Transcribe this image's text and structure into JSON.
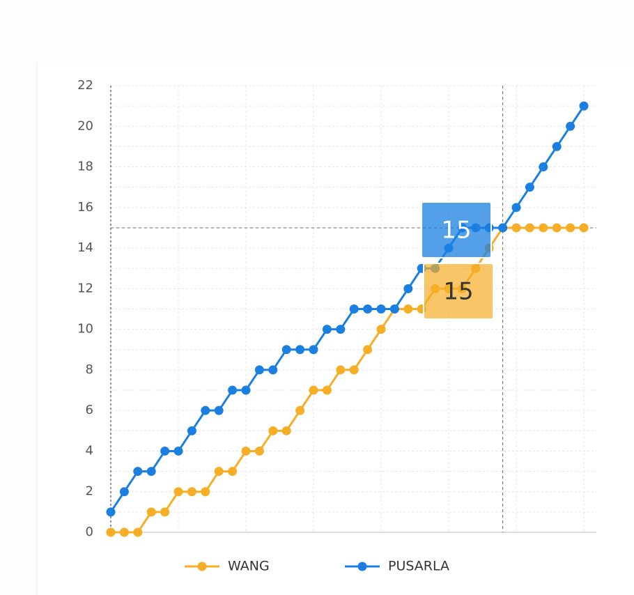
{
  "chart_data": {
    "type": "line",
    "categories": [
      null,
      null,
      null,
      null,
      null,
      null,
      null,
      null,
      null,
      null,
      null,
      null,
      null,
      null,
      null,
      null,
      null,
      null,
      null,
      null,
      null,
      null,
      null,
      null,
      null,
      null,
      null,
      null,
      null,
      null,
      null,
      null,
      null,
      null,
      null,
      null
    ],
    "series": [
      {
        "name": "WANG",
        "color": "#f5ae25",
        "values": [
          0,
          0,
          0,
          1,
          1,
          2,
          2,
          2,
          3,
          3,
          4,
          4,
          5,
          5,
          6,
          7,
          7,
          8,
          8,
          9,
          10,
          11,
          11,
          11,
          12,
          12,
          12,
          13,
          14,
          15,
          15,
          15,
          15,
          15,
          15,
          15
        ]
      },
      {
        "name": "PUSARLA",
        "color": "#1a7fe0",
        "values": [
          1,
          2,
          3,
          3,
          4,
          4,
          5,
          6,
          6,
          7,
          7,
          8,
          8,
          9,
          9,
          9,
          10,
          10,
          11,
          11,
          11,
          11,
          12,
          13,
          13,
          14,
          15,
          15,
          15,
          15,
          16,
          17,
          18,
          19,
          20,
          21
        ]
      }
    ],
    "ylim": [
      0,
      22
    ],
    "yticks": [
      0,
      2,
      4,
      6,
      8,
      10,
      12,
      14,
      16,
      18,
      20,
      22
    ],
    "grid": true
  }
}
